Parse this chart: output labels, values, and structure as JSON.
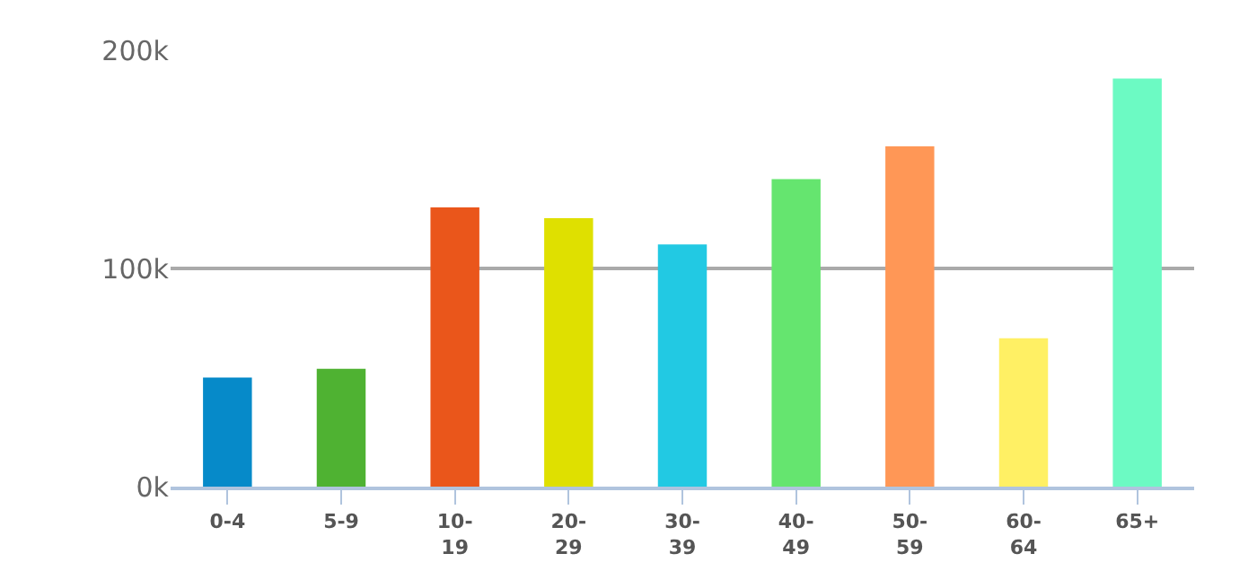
{
  "chart_data": {
    "type": "bar",
    "categories": [
      "0-4",
      "5-9",
      "10-\n19",
      "20-\n29",
      "30-\n39",
      "40-\n49",
      "50-\n59",
      "60-\n64",
      "65+"
    ],
    "values": [
      50000,
      54000,
      128000,
      123000,
      111000,
      141000,
      156000,
      68000,
      187000
    ],
    "colors": [
      "#068ac9",
      "#4fb232",
      "#ea561b",
      "#dfe000",
      "#22c9e3",
      "#65e56f",
      "#ff9756",
      "#fff064",
      "#6cfac3"
    ],
    "ylim": [
      0,
      200000
    ],
    "yticks": [
      {
        "value": 0,
        "label": "0k"
      },
      {
        "value": 100000,
        "label": "100k"
      },
      {
        "value": 200000,
        "label": "200k"
      }
    ],
    "grid": "y"
  }
}
